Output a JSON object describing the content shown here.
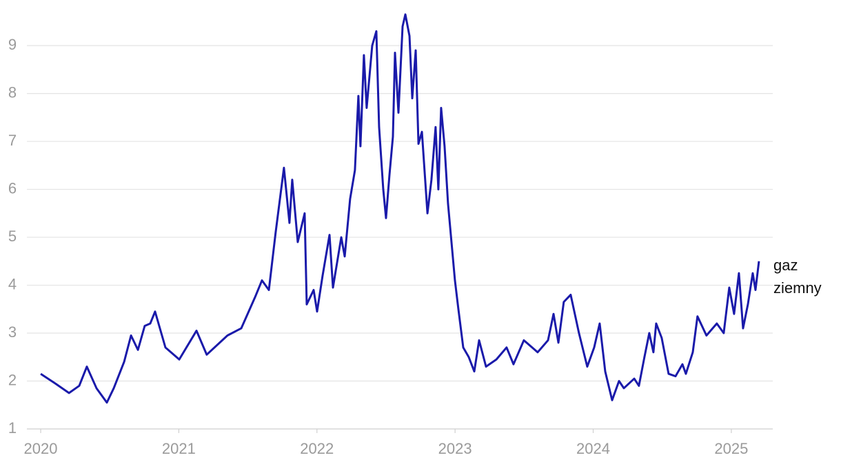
{
  "chart_data": {
    "type": "line",
    "x": [
      2020.0,
      2020.105,
      2020.205,
      2020.279,
      2020.334,
      2020.404,
      2020.479,
      2020.529,
      2020.604,
      2020.654,
      2020.704,
      2020.753,
      2020.793,
      2020.828,
      2020.903,
      2021.003,
      2021.128,
      2021.202,
      2021.352,
      2021.452,
      2021.552,
      2021.602,
      2021.652,
      2021.701,
      2021.761,
      2021.801,
      2021.821,
      2021.861,
      2021.911,
      2021.926,
      2021.976,
      2022.001,
      2022.041,
      2022.091,
      2022.116,
      2022.176,
      2022.201,
      2022.24,
      2022.275,
      2022.3,
      2022.315,
      2022.34,
      2022.36,
      2022.4,
      2022.43,
      2022.45,
      2022.48,
      2022.5,
      2022.525,
      2022.55,
      2022.565,
      2022.59,
      2022.62,
      2022.64,
      2022.67,
      2022.69,
      2022.715,
      2022.735,
      2022.76,
      2022.8,
      2022.829,
      2022.859,
      2022.879,
      2022.899,
      2022.924,
      2022.949,
      2022.974,
      2022.999,
      2023.024,
      2023.059,
      2023.099,
      2023.139,
      2023.174,
      2023.224,
      2023.299,
      2023.373,
      2023.423,
      2023.498,
      2023.598,
      2023.673,
      2023.713,
      2023.748,
      2023.787,
      2023.837,
      2023.897,
      2023.957,
      2024.007,
      2024.047,
      2024.087,
      2024.137,
      2024.187,
      2024.222,
      2024.297,
      2024.331,
      2024.371,
      2024.406,
      2024.436,
      2024.456,
      2024.496,
      2024.546,
      2024.596,
      2024.646,
      2024.671,
      2024.721,
      2024.755,
      2024.82,
      2024.895,
      2024.945,
      2024.985,
      2025.02,
      2025.055,
      2025.085,
      2025.12,
      2025.155,
      2025.175,
      2025.2
    ],
    "series": [
      {
        "name": "gaz ziemny",
        "color": "#1a1aaa",
        "values": [
          2.15,
          1.95,
          1.75,
          1.9,
          2.3,
          1.85,
          1.55,
          1.85,
          2.4,
          2.95,
          2.65,
          3.15,
          3.2,
          3.45,
          2.7,
          2.45,
          3.05,
          2.55,
          2.95,
          3.1,
          3.75,
          4.1,
          3.9,
          5.1,
          6.45,
          5.3,
          6.2,
          4.9,
          5.5,
          3.6,
          3.9,
          3.45,
          4.2,
          5.05,
          3.95,
          5.0,
          4.6,
          5.8,
          6.4,
          7.95,
          6.9,
          8.8,
          7.7,
          9.0,
          9.3,
          7.3,
          6.0,
          5.4,
          6.3,
          7.1,
          8.85,
          7.6,
          9.4,
          9.65,
          9.2,
          7.9,
          8.9,
          6.95,
          7.2,
          5.5,
          6.2,
          7.3,
          6.0,
          7.7,
          6.9,
          5.7,
          4.9,
          4.1,
          3.5,
          2.7,
          2.5,
          2.2,
          2.85,
          2.3,
          2.45,
          2.7,
          2.35,
          2.85,
          2.6,
          2.85,
          3.4,
          2.8,
          3.65,
          3.8,
          3.0,
          2.3,
          2.7,
          3.2,
          2.2,
          1.6,
          2.0,
          1.85,
          2.05,
          1.9,
          2.5,
          3.0,
          2.6,
          3.2,
          2.9,
          2.15,
          2.1,
          2.35,
          2.15,
          2.6,
          3.35,
          2.95,
          3.2,
          3.0,
          3.95,
          3.4,
          4.25,
          3.1,
          3.6,
          4.25,
          3.9,
          4.5
        ]
      }
    ],
    "xlim": [
      2019.9,
      2025.3
    ],
    "xticks": [
      2020,
      2021,
      2022,
      2023,
      2024,
      2025
    ],
    "ylim": [
      1,
      9.75
    ],
    "yticks": [
      1,
      2,
      3,
      4,
      5,
      6,
      7,
      8,
      9
    ],
    "grid": true
  }
}
